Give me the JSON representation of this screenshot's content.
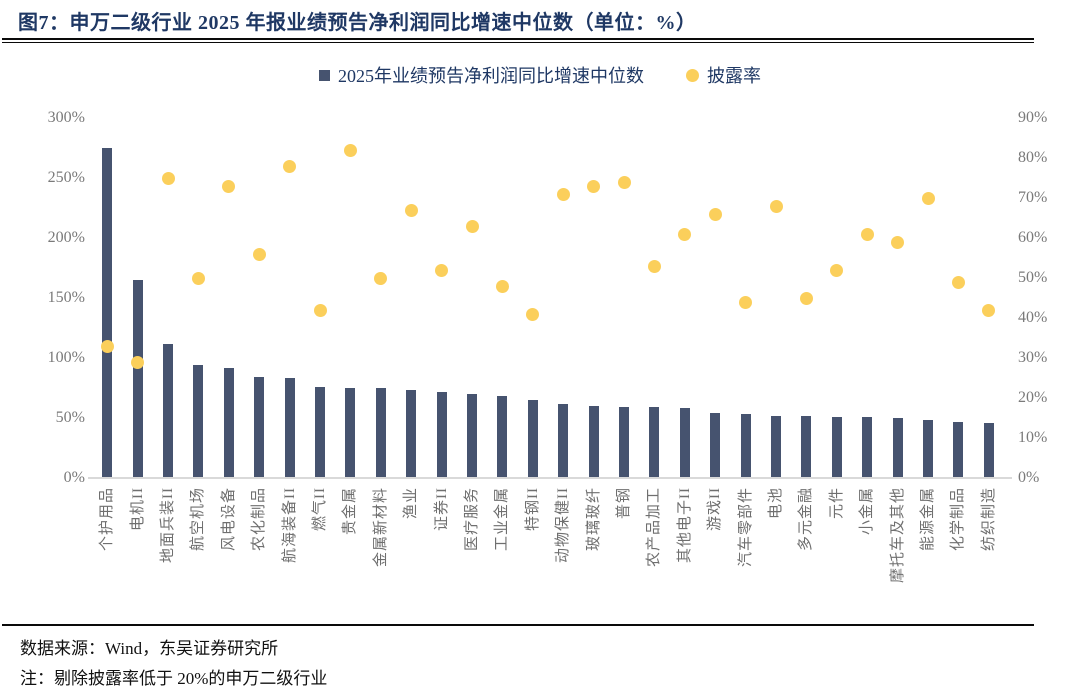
{
  "figure_title": "图7：申万二级行业 2025 年报业绩预告净利润同比增速中位数（单位：%）",
  "legend": {
    "bar_label": "2025年业绩预告净利润同比增速中位数",
    "dot_label": "披露率"
  },
  "footer": {
    "source": "数据来源：Wind，东吴证券研究所",
    "note": "注：剔除披露率低于 20%的申万二级行业"
  },
  "colors": {
    "bar": "#46536F",
    "dot": "#FBCF5B",
    "title": "#1F3864",
    "axis_text": "#7A7A7A"
  },
  "chart_data": {
    "type": "bar",
    "subtype": "combo-bar-scatter-dual-axis",
    "title": "申万二级行业2025年报业绩预告净利润同比增速中位数",
    "grid": false,
    "legend_position": "top-center",
    "categories": [
      "个护用品",
      "电机II",
      "地面兵装II",
      "航空机场",
      "风电设备",
      "农化制品",
      "航海装备II",
      "燃气II",
      "贵金属",
      "金属新材料",
      "渔业",
      "证券II",
      "医疗服务",
      "工业金属",
      "特钢II",
      "动物保健II",
      "玻璃玻纤",
      "普钢",
      "农产品加工",
      "其他电子II",
      "游戏II",
      "汽车零部件",
      "电池",
      "多元金融",
      "元件",
      "小金属",
      "摩托车及其他",
      "能源金属",
      "化学制品",
      "纺织制造"
    ],
    "series": [
      {
        "name": "2025年业绩预告净利润同比增速中位数",
        "type": "bar",
        "axis": "left",
        "unit": "%",
        "values": [
          275,
          165,
          112,
          94,
          92,
          84,
          83,
          76,
          75,
          75,
          73,
          72,
          70,
          68,
          65,
          62,
          60,
          59,
          59,
          58,
          54,
          53,
          52,
          52,
          51,
          51,
          50,
          48,
          47,
          46
        ]
      },
      {
        "name": "披露率",
        "type": "scatter",
        "axis": "right",
        "unit": "%",
        "values": [
          33,
          29,
          75,
          50,
          73,
          56,
          78,
          42,
          82,
          50,
          67,
          52,
          63,
          48,
          41,
          71,
          73,
          74,
          53,
          61,
          66,
          44,
          68,
          45,
          52,
          61,
          59,
          70,
          49,
          42
        ]
      }
    ],
    "left_axis": {
      "min": 0,
      "max": 300,
      "step": 50,
      "suffix": "%",
      "tick_labels": [
        "0%",
        "50%",
        "100%",
        "150%",
        "200%",
        "250%",
        "300%"
      ]
    },
    "right_axis": {
      "min": 0,
      "max": 90,
      "step": 10,
      "suffix": "%",
      "tick_labels": [
        "0%",
        "10%",
        "20%",
        "30%",
        "40%",
        "50%",
        "60%",
        "70%",
        "80%",
        "90%"
      ]
    }
  }
}
